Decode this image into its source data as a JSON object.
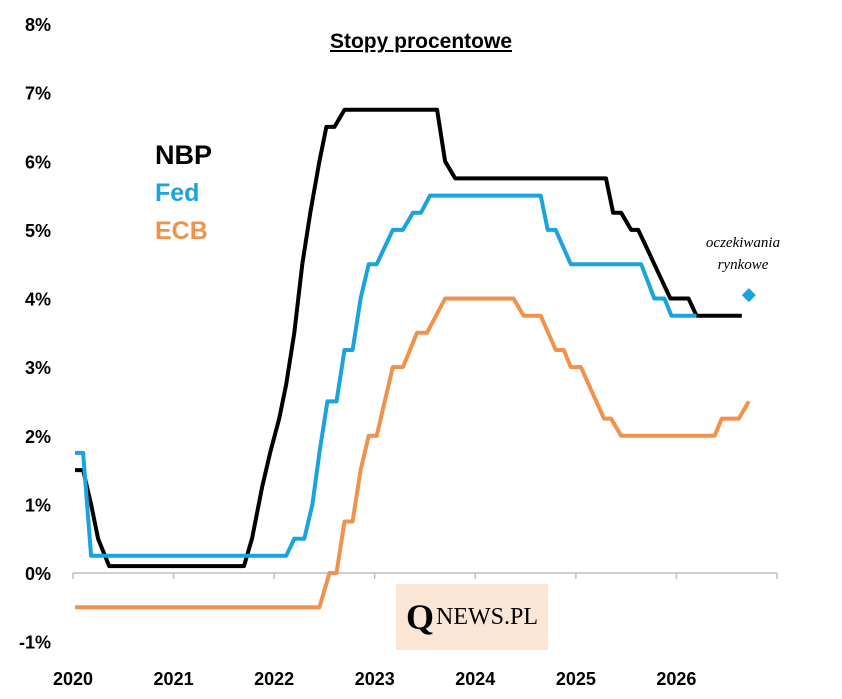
{
  "chart_data": {
    "type": "line",
    "title": "Stopy procentowe",
    "ylim": [
      -1,
      8
    ],
    "xlim": [
      2020,
      2027
    ],
    "yticks": [
      -1,
      0,
      1,
      2,
      3,
      4,
      5,
      6,
      7,
      8
    ],
    "ytick_labels": [
      "-1%",
      "0%",
      "1%",
      "2%",
      "3%",
      "4%",
      "5%",
      "6%",
      "7%",
      "8%"
    ],
    "xticks": [
      2020,
      2021,
      2022,
      2023,
      2024,
      2025,
      2026
    ],
    "xtick_labels": [
      "2020",
      "2021",
      "2022",
      "2023",
      "2024",
      "2025",
      "2026"
    ],
    "grid": false,
    "legend_position": "top-left",
    "series": [
      {
        "name": "NBP",
        "color": "#000000",
        "points": [
          [
            2020.02,
            1.5
          ],
          [
            2020.1,
            1.5
          ],
          [
            2020.18,
            1.0
          ],
          [
            2020.25,
            0.5
          ],
          [
            2020.36,
            0.1
          ],
          [
            2021.7,
            0.1
          ],
          [
            2021.78,
            0.5
          ],
          [
            2021.88,
            1.25
          ],
          [
            2021.96,
            1.75
          ],
          [
            2022.05,
            2.25
          ],
          [
            2022.12,
            2.75
          ],
          [
            2022.2,
            3.5
          ],
          [
            2022.28,
            4.5
          ],
          [
            2022.36,
            5.25
          ],
          [
            2022.45,
            6.0
          ],
          [
            2022.52,
            6.5
          ],
          [
            2022.6,
            6.5
          ],
          [
            2022.7,
            6.75
          ],
          [
            2023.62,
            6.75
          ],
          [
            2023.7,
            6.0
          ],
          [
            2023.8,
            5.75
          ],
          [
            2025.3,
            5.75
          ],
          [
            2025.37,
            5.25
          ],
          [
            2025.45,
            5.25
          ],
          [
            2025.55,
            5.0
          ],
          [
            2025.62,
            5.0
          ],
          [
            2025.7,
            4.75
          ],
          [
            2025.78,
            4.5
          ],
          [
            2025.86,
            4.25
          ],
          [
            2025.94,
            4.0
          ],
          [
            2026.12,
            4.0
          ],
          [
            2026.2,
            3.75
          ],
          [
            2026.65,
            3.75
          ]
        ]
      },
      {
        "name": "Fed",
        "color": "#1aa3dc",
        "points": [
          [
            2020.02,
            1.75
          ],
          [
            2020.1,
            1.75
          ],
          [
            2020.18,
            0.25
          ],
          [
            2022.12,
            0.25
          ],
          [
            2022.2,
            0.5
          ],
          [
            2022.3,
            0.5
          ],
          [
            2022.38,
            1.0
          ],
          [
            2022.45,
            1.75
          ],
          [
            2022.53,
            2.5
          ],
          [
            2022.62,
            2.5
          ],
          [
            2022.7,
            3.25
          ],
          [
            2022.78,
            3.25
          ],
          [
            2022.86,
            4.0
          ],
          [
            2022.94,
            4.5
          ],
          [
            2023.02,
            4.5
          ],
          [
            2023.18,
            5.0
          ],
          [
            2023.28,
            5.0
          ],
          [
            2023.38,
            5.25
          ],
          [
            2023.46,
            5.25
          ],
          [
            2023.55,
            5.5
          ],
          [
            2024.65,
            5.5
          ],
          [
            2024.72,
            5.0
          ],
          [
            2024.8,
            5.0
          ],
          [
            2024.95,
            4.5
          ],
          [
            2025.65,
            4.5
          ],
          [
            2025.78,
            4.0
          ],
          [
            2025.88,
            4.0
          ],
          [
            2025.95,
            3.75
          ],
          [
            2026.2,
            3.75
          ]
        ]
      },
      {
        "name": "ECB",
        "color": "#f0924b",
        "points": [
          [
            2020.02,
            -0.5
          ],
          [
            2022.45,
            -0.5
          ],
          [
            2022.55,
            0.0
          ],
          [
            2022.62,
            0.0
          ],
          [
            2022.7,
            0.75
          ],
          [
            2022.78,
            0.75
          ],
          [
            2022.86,
            1.5
          ],
          [
            2022.94,
            2.0
          ],
          [
            2023.02,
            2.0
          ],
          [
            2023.18,
            3.0
          ],
          [
            2023.28,
            3.0
          ],
          [
            2023.42,
            3.5
          ],
          [
            2023.52,
            3.5
          ],
          [
            2023.7,
            4.0
          ],
          [
            2024.38,
            4.0
          ],
          [
            2024.48,
            3.75
          ],
          [
            2024.65,
            3.75
          ],
          [
            2024.8,
            3.25
          ],
          [
            2024.88,
            3.25
          ],
          [
            2024.95,
            3.0
          ],
          [
            2025.05,
            3.0
          ],
          [
            2025.28,
            2.25
          ],
          [
            2025.35,
            2.25
          ],
          [
            2025.45,
            2.0
          ],
          [
            2026.38,
            2.0
          ],
          [
            2026.45,
            2.25
          ],
          [
            2026.62,
            2.25
          ],
          [
            2026.72,
            2.5
          ]
        ]
      }
    ],
    "markers": [
      {
        "label": "oczekiwania rynkowe",
        "x": 2026.72,
        "y": 4.05,
        "color": "#1aa3dc",
        "shape": "diamond"
      }
    ]
  },
  "legend": {
    "nbp": "NBP",
    "fed": "Fed",
    "ecb": "ECB"
  },
  "annotation": {
    "line1": "oczekiwania",
    "line2": "rynkowe"
  },
  "watermark": {
    "q": "Q",
    "rest": "NEWS.PL"
  },
  "colors": {
    "nbp": "#000000",
    "fed": "#1aa3dc",
    "ecb": "#f0924b",
    "watermark_bg": "#fbe6d5"
  }
}
